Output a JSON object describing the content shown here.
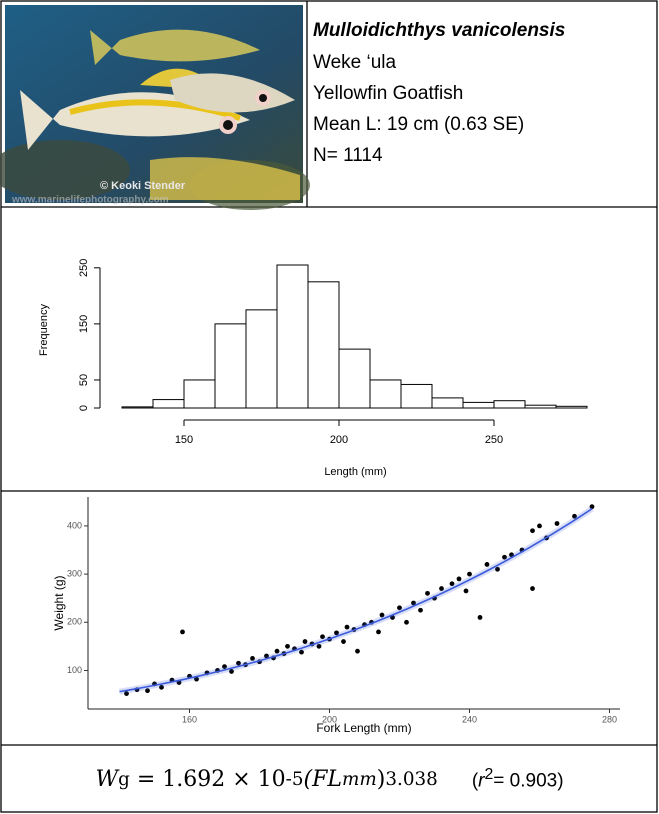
{
  "header": {
    "scientific_name": "Mulloidichthys vanicolensis",
    "local_name": "Weke ‘ula",
    "common_name": "Yellowfin Goatfish",
    "mean_length": "Mean L: 19 cm (0.63 SE)",
    "sample_size": "N= 1114",
    "photo_credit": "© Keoki Stender",
    "photo_url": "www.marinelifephotography.com"
  },
  "histogram": {
    "type": "histogram",
    "xlabel": "Length (mm)",
    "ylabel": "Frequency",
    "bins": [
      130,
      140,
      150,
      160,
      170,
      180,
      190,
      200,
      210,
      220,
      230,
      240,
      250,
      260,
      270,
      280
    ],
    "counts": [
      2,
      15,
      50,
      150,
      175,
      255,
      225,
      105,
      50,
      42,
      18,
      10,
      13,
      5,
      3
    ],
    "xlim": [
      130,
      280
    ],
    "ylim": [
      0,
      255
    ],
    "xticks": [
      150,
      200,
      250
    ],
    "yticks": [
      0,
      50,
      150,
      250
    ]
  },
  "scatter": {
    "type": "scatter",
    "xlabel": "Fork Length (mm)",
    "ylabel": "Weight (g)",
    "xlim": [
      131,
      283
    ],
    "ylim": [
      20,
      460
    ],
    "xticks": [
      160,
      200,
      240,
      280
    ],
    "yticks": [
      100,
      200,
      300,
      400
    ],
    "fit_color": "#3b5bdb",
    "fit_range": [
      140,
      275
    ],
    "x": [
      142,
      145,
      148,
      150,
      152,
      155,
      157,
      158,
      160,
      162,
      165,
      168,
      170,
      172,
      174,
      176,
      178,
      180,
      182,
      184,
      185,
      187,
      188,
      190,
      192,
      193,
      195,
      197,
      198,
      200,
      202,
      204,
      205,
      207,
      208,
      210,
      212,
      214,
      215,
      218,
      220,
      222,
      224,
      226,
      228,
      230,
      232,
      235,
      237,
      239,
      240,
      243,
      245,
      248,
      250,
      252,
      255,
      258,
      260,
      262,
      265,
      270,
      275,
      258
    ],
    "y": [
      52,
      60,
      58,
      72,
      65,
      80,
      75,
      180,
      88,
      82,
      95,
      100,
      108,
      98,
      115,
      112,
      125,
      118,
      130,
      126,
      140,
      135,
      150,
      145,
      138,
      160,
      155,
      150,
      170,
      165,
      178,
      160,
      190,
      185,
      140,
      195,
      200,
      180,
      215,
      210,
      230,
      200,
      240,
      225,
      260,
      250,
      270,
      280,
      290,
      265,
      300,
      210,
      320,
      310,
      335,
      340,
      350,
      390,
      400,
      375,
      405,
      420,
      440,
      270
    ]
  },
  "formula": {
    "lhs": "W",
    "lhs_sub": "g",
    "equals": "=",
    "coef": 1.692,
    "times": "× 10",
    "exp": -5,
    "var": "(FL",
    "var_sub": "mm",
    "close": ")",
    "power": 3.038,
    "r2_open": "(",
    "r2": "r",
    "r2_sup": "2",
    "r2_eq": "= ",
    "r2_value": 0.903,
    "r2_close": ")"
  }
}
